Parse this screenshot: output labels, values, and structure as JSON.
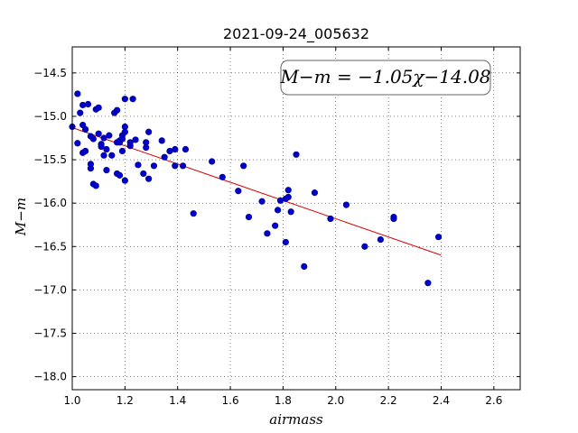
{
  "chart_data": {
    "type": "scatter",
    "title": "2021-09-24_005632",
    "xlabel": "airmass",
    "ylabel": "M−m",
    "xlim": [
      1.0,
      2.7
    ],
    "ylim": [
      -18.15,
      -14.2
    ],
    "y_inverted": true,
    "grid": true,
    "x_ticks": [
      1.0,
      1.2,
      1.4,
      1.6,
      1.8,
      2.0,
      2.2,
      2.4,
      2.6
    ],
    "x_tick_labels": [
      "1.0",
      "1.2",
      "1.4",
      "1.6",
      "1.8",
      "2.0",
      "2.2",
      "2.4",
      "2.6"
    ],
    "y_ticks": [
      -14.5,
      -15.0,
      -15.5,
      -16.0,
      -16.5,
      -17.0,
      -17.5,
      -18.0
    ],
    "y_tick_labels": [
      "−14.5",
      "−15.0",
      "−15.5",
      "−16.0",
      "−16.5",
      "−17.0",
      "−17.5",
      "−18.0"
    ],
    "annotation": "M−m = −1.05χ−14.08",
    "fit_line": {
      "slope": -1.05,
      "intercept": -14.08,
      "x_range": [
        1.0,
        2.4
      ],
      "color": "#dd0000"
    },
    "point_color": "#0000cc",
    "points": [
      [
        1.0,
        -15.12
      ],
      [
        1.02,
        -14.74
      ],
      [
        1.02,
        -15.31
      ],
      [
        1.03,
        -14.96
      ],
      [
        1.04,
        -14.87
      ],
      [
        1.04,
        -15.1
      ],
      [
        1.04,
        -15.42
      ],
      [
        1.05,
        -15.15
      ],
      [
        1.05,
        -15.4
      ],
      [
        1.06,
        -14.86
      ],
      [
        1.07,
        -15.23
      ],
      [
        1.07,
        -15.55
      ],
      [
        1.07,
        -15.6
      ],
      [
        1.08,
        -15.26
      ],
      [
        1.08,
        -15.78
      ],
      [
        1.09,
        -15.8
      ],
      [
        1.09,
        -14.92
      ],
      [
        1.1,
        -14.9
      ],
      [
        1.1,
        -15.2
      ],
      [
        1.11,
        -15.32
      ],
      [
        1.11,
        -15.35
      ],
      [
        1.12,
        -15.25
      ],
      [
        1.12,
        -15.45
      ],
      [
        1.13,
        -15.62
      ],
      [
        1.13,
        -15.38
      ],
      [
        1.14,
        -15.22
      ],
      [
        1.15,
        -15.45
      ],
      [
        1.16,
        -14.96
      ],
      [
        1.17,
        -15.3
      ],
      [
        1.17,
        -14.93
      ],
      [
        1.17,
        -15.66
      ],
      [
        1.18,
        -15.68
      ],
      [
        1.18,
        -15.28
      ],
      [
        1.18,
        -15.3
      ],
      [
        1.19,
        -15.22
      ],
      [
        1.19,
        -15.26
      ],
      [
        1.19,
        -15.4
      ],
      [
        1.2,
        -15.12
      ],
      [
        1.2,
        -15.18
      ],
      [
        1.2,
        -14.8
      ],
      [
        1.2,
        -15.74
      ],
      [
        1.22,
        -15.3
      ],
      [
        1.22,
        -15.34
      ],
      [
        1.23,
        -14.8
      ],
      [
        1.24,
        -15.27
      ],
      [
        1.25,
        -15.56
      ],
      [
        1.27,
        -15.66
      ],
      [
        1.28,
        -15.3
      ],
      [
        1.28,
        -15.36
      ],
      [
        1.29,
        -15.72
      ],
      [
        1.29,
        -15.18
      ],
      [
        1.31,
        -15.57
      ],
      [
        1.34,
        -15.28
      ],
      [
        1.35,
        -15.47
      ],
      [
        1.37,
        -15.4
      ],
      [
        1.39,
        -15.57
      ],
      [
        1.39,
        -15.38
      ],
      [
        1.42,
        -15.57
      ],
      [
        1.43,
        -15.38
      ],
      [
        1.46,
        -16.12
      ],
      [
        1.53,
        -15.52
      ],
      [
        1.57,
        -15.7
      ],
      [
        1.63,
        -15.86
      ],
      [
        1.65,
        -15.57
      ],
      [
        1.67,
        -16.16
      ],
      [
        1.72,
        -15.98
      ],
      [
        1.74,
        -16.35
      ],
      [
        1.77,
        -16.26
      ],
      [
        1.78,
        -16.08
      ],
      [
        1.79,
        -15.97
      ],
      [
        1.81,
        -15.95
      ],
      [
        1.81,
        -16.45
      ],
      [
        1.82,
        -15.85
      ],
      [
        1.82,
        -15.93
      ],
      [
        1.83,
        -16.1
      ],
      [
        1.85,
        -15.44
      ],
      [
        1.88,
        -16.73
      ],
      [
        1.92,
        -15.88
      ],
      [
        1.98,
        -16.18
      ],
      [
        2.04,
        -16.02
      ],
      [
        2.11,
        -16.5
      ],
      [
        2.17,
        -16.42
      ],
      [
        2.22,
        -16.16
      ],
      [
        2.22,
        -16.18
      ],
      [
        2.35,
        -16.92
      ],
      [
        2.39,
        -16.39
      ]
    ]
  }
}
